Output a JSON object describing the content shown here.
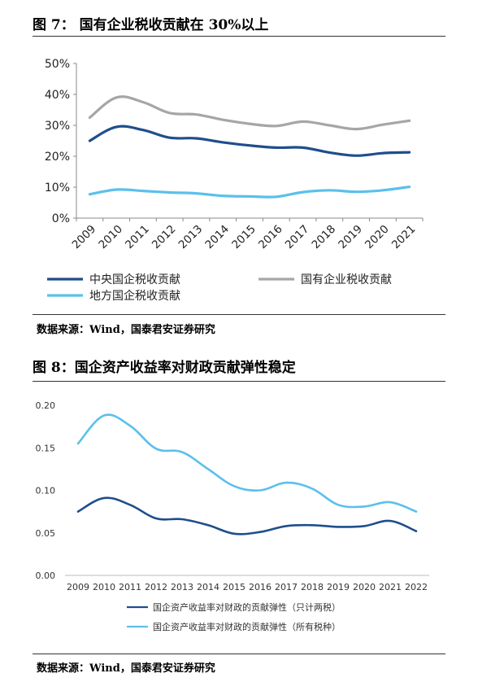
{
  "figures": [
    {
      "title": "图 7： 国有企业税收贡献在 30%以上",
      "source": "数据来源：Wind，国泰君安证券研究"
    },
    {
      "title": "图 8：国企资产收益率对财政贡献弹性稳定",
      "source": "数据来源：Wind，国泰君安证券研究"
    }
  ],
  "chart_data": [
    {
      "type": "line",
      "title": "国有企业税收贡献在 30%以上",
      "x": [
        "2009",
        "2010",
        "2011",
        "2012",
        "2013",
        "2014",
        "2015",
        "2016",
        "2017",
        "2018",
        "2019",
        "2020",
        "2021"
      ],
      "y_ticks": [
        "0%",
        "10%",
        "20%",
        "30%",
        "40%",
        "50%"
      ],
      "ylim": [
        0,
        50
      ],
      "grid": false,
      "legend_position": "bottom",
      "series": [
        {
          "name": "中央国企税收贡献",
          "color": "#1f4e8c",
          "values": [
            25,
            29.5,
            28.5,
            26,
            25.8,
            24.5,
            23.5,
            22.8,
            22.8,
            21.2,
            20.2,
            21,
            21.3
          ]
        },
        {
          "name": "国有企业税收贡献",
          "color": "#a6a6a6",
          "values": [
            32.5,
            39,
            37.5,
            34,
            33.5,
            31.8,
            30.5,
            29.8,
            31.2,
            30,
            28.8,
            30.2,
            31.5
          ]
        },
        {
          "name": "地方国企税收贡献",
          "color": "#5bc0eb",
          "values": [
            7.7,
            9.2,
            8.8,
            8.3,
            8,
            7.2,
            7,
            6.9,
            8.4,
            9,
            8.5,
            9,
            10.1
          ]
        }
      ]
    },
    {
      "type": "line",
      "title": "国企资产收益率对财政贡献弹性稳定",
      "x": [
        "2009",
        "2010",
        "2011",
        "2012",
        "2013",
        "2014",
        "2015",
        "2016",
        "2017",
        "2018",
        "2019",
        "2020",
        "2021",
        "2022"
      ],
      "y_ticks": [
        "0.00",
        "0.05",
        "0.10",
        "0.15",
        "0.20"
      ],
      "ylim": [
        0,
        0.2
      ],
      "grid": false,
      "legend_position": "bottom",
      "series": [
        {
          "name": "国企资产收益率对财政的贡献弹性（只计两税）",
          "color": "#1f4e8c",
          "values": [
            0.075,
            0.091,
            0.083,
            0.067,
            0.066,
            0.059,
            0.049,
            0.051,
            0.058,
            0.059,
            0.057,
            0.058,
            0.064,
            0.052
          ]
        },
        {
          "name": "国企资产收益率对财政的贡献弹性（所有税种）",
          "color": "#5bc0eb",
          "values": [
            0.155,
            0.188,
            0.176,
            0.149,
            0.145,
            0.125,
            0.105,
            0.1,
            0.109,
            0.102,
            0.083,
            0.081,
            0.086,
            0.075
          ]
        }
      ]
    }
  ]
}
